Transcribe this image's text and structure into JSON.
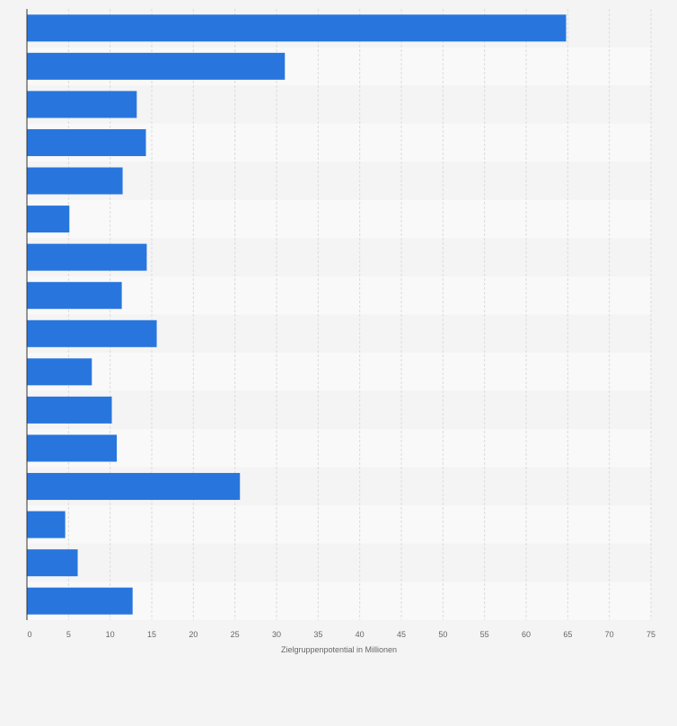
{
  "chart_data": {
    "type": "bar",
    "orientation": "horizontal",
    "title": "",
    "xlabel": "Zielgruppenpotential in Millionen",
    "ylabel": "",
    "xlim": [
      0,
      75
    ],
    "x_ticks": [
      0,
      5,
      10,
      15,
      20,
      25,
      30,
      35,
      40,
      45,
      50,
      55,
      60,
      65,
      70,
      75
    ],
    "grid": true,
    "categories": [
      "",
      "",
      "",
      "",
      "",
      "",
      "",
      "",
      "",
      "",
      "",
      "",
      "",
      "",
      "",
      ""
    ],
    "values": [
      64.8,
      31.0,
      13.2,
      14.3,
      11.5,
      5.1,
      14.4,
      11.4,
      15.6,
      7.8,
      10.2,
      10.8,
      25.6,
      4.6,
      6.1,
      12.7
    ],
    "colors": {
      "bar": "#2876dd",
      "band_light": "#f9f9f9",
      "band_dark": "#f4f4f5",
      "grid": "#dcdcdc",
      "axis": "#333333",
      "text": "#666666"
    }
  }
}
